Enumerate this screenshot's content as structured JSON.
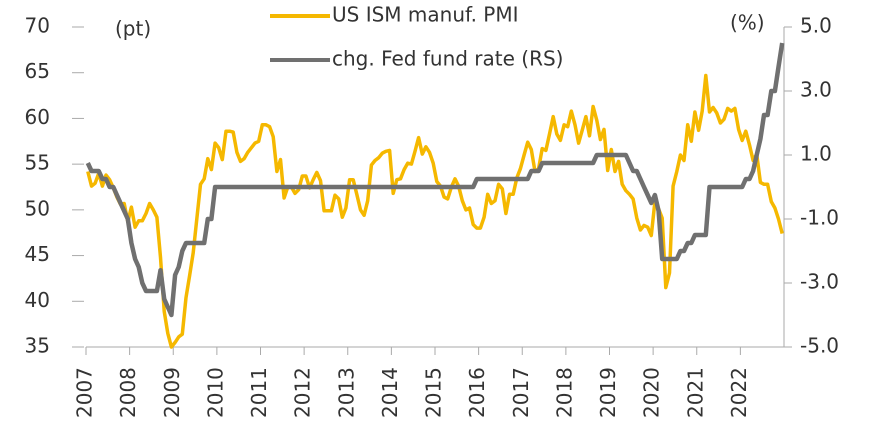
{
  "chart_data": {
    "type": "line",
    "y_unit_label": "(pt)",
    "y2_unit_label": "(%)",
    "xlim": [
      2007,
      2023
    ],
    "xticks": [
      2007,
      2008,
      2009,
      2010,
      2011,
      2012,
      2013,
      2014,
      2015,
      2016,
      2017,
      2018,
      2019,
      2020,
      2021,
      2022
    ],
    "ylim": [
      35,
      70
    ],
    "yticks": [
      35,
      40,
      45,
      50,
      55,
      60,
      65,
      70
    ],
    "y2lim": [
      -5,
      5
    ],
    "y2ticks": [
      {
        "value": -5,
        "label": "-5.0"
      },
      {
        "value": -3,
        "label": "-3.0"
      },
      {
        "value": -1,
        "label": "-1.0"
      },
      {
        "value": 1,
        "label": "1.0"
      },
      {
        "value": 3,
        "label": "3.0"
      },
      {
        "value": 5,
        "label": "5.0"
      }
    ],
    "series": [
      {
        "name": "US ISM manuf. PMI",
        "color": "#f5b800",
        "values": [
          54.2,
          52.6,
          52.9,
          54.0,
          52.6,
          53.8,
          53.3,
          52.4,
          51.4,
          50.6,
          50.7,
          48.7,
          50.3,
          48.1,
          48.8,
          48.8,
          49.6,
          50.7,
          50.0,
          49.2,
          44.8,
          38.9,
          36.5,
          35.0,
          35.5,
          36.1,
          36.4,
          40.4,
          42.8,
          45.3,
          49.1,
          52.8,
          53.4,
          55.6,
          54.4,
          57.3,
          56.8,
          55.5,
          58.6,
          58.6,
          58.5,
          56.3,
          55.3,
          55.6,
          56.3,
          56.8,
          57.3,
          57.5,
          59.3,
          59.3,
          59.1,
          58.0,
          54.2,
          55.5,
          51.3,
          52.5,
          52.5,
          51.8,
          52.2,
          53.7,
          53.7,
          52.4,
          53.3,
          54.1,
          53.2,
          49.9,
          49.9,
          49.9,
          51.6,
          51.2,
          49.2,
          50.2,
          53.3,
          53.3,
          51.7,
          50.0,
          49.4,
          51.0,
          54.9,
          55.4,
          55.7,
          56.2,
          56.4,
          56.5,
          51.8,
          53.3,
          53.4,
          54.4,
          55.1,
          55.0,
          56.4,
          57.9,
          56.1,
          56.9,
          56.3,
          55.1,
          53.1,
          52.6,
          51.4,
          51.2,
          52.5,
          53.4,
          52.6,
          51.0,
          50.0,
          50.2,
          48.4,
          48.0,
          48.0,
          49.2,
          51.7,
          50.7,
          51.0,
          52.8,
          52.3,
          49.6,
          51.7,
          51.7,
          53.5,
          54.5,
          56.0,
          57.4,
          56.6,
          54.2,
          54.5,
          56.7,
          56.5,
          58.3,
          60.2,
          58.3,
          57.6,
          59.3,
          59.1,
          60.8,
          59.3,
          57.3,
          58.7,
          60.2,
          58.1,
          61.3,
          59.8,
          57.7,
          58.8,
          54.3,
          56.6,
          54.2,
          55.3,
          52.8,
          52.1,
          51.7,
          51.2,
          49.1,
          47.8,
          48.3,
          48.1,
          47.2,
          50.9,
          50.1,
          49.1,
          41.5,
          43.1,
          52.6,
          54.2,
          56.0,
          55.4,
          59.3,
          57.5,
          60.7,
          58.7,
          60.8,
          64.7,
          60.7,
          61.2,
          60.6,
          59.5,
          59.9,
          61.1,
          60.8,
          61.1,
          58.8,
          57.6,
          58.6,
          57.1,
          55.4,
          56.1,
          53.0,
          52.8,
          52.8,
          50.9,
          50.2,
          49.0,
          47.4
        ]
      },
      {
        "name": "chg. Fed fund rate (RS)",
        "color": "#707070",
        "axis": "y2",
        "values": [
          0.75,
          0.5,
          0.5,
          0.5,
          0.25,
          0.25,
          0,
          0,
          -0.25,
          -0.5,
          -0.75,
          -1.0,
          -1.75,
          -2.25,
          -2.5,
          -3.0,
          -3.25,
          -3.25,
          -3.25,
          -3.25,
          -2.6,
          -3.5,
          -3.75,
          -4.0,
          -2.75,
          -2.5,
          -2.0,
          -1.75,
          -1.75,
          -1.75,
          -1.75,
          -1.75,
          -1.75,
          -1.0,
          -1.0,
          0,
          0,
          0,
          0,
          0,
          0,
          0,
          0,
          0,
          0,
          0,
          0,
          0,
          0,
          0,
          0,
          0,
          0,
          0,
          0,
          0,
          0,
          0,
          0,
          0,
          0,
          0,
          0,
          0,
          0,
          0,
          0,
          0,
          0,
          0,
          0,
          0,
          0,
          0,
          0,
          0,
          0,
          0,
          0,
          0,
          0,
          0,
          0,
          0,
          0,
          0,
          0,
          0,
          0,
          0,
          0,
          0,
          0,
          0,
          0,
          0,
          0,
          0,
          0,
          0,
          0,
          0,
          0,
          0,
          0,
          0,
          0,
          0.25,
          0.25,
          0.25,
          0.25,
          0.25,
          0.25,
          0.25,
          0.25,
          0.25,
          0.25,
          0.25,
          0.25,
          0.25,
          0.25,
          0.25,
          0.5,
          0.5,
          0.5,
          0.75,
          0.75,
          0.75,
          0.75,
          0.75,
          0.75,
          0.75,
          0.75,
          0.75,
          0.75,
          0.75,
          0.75,
          0.75,
          0.75,
          0.75,
          1.0,
          1.0,
          1.0,
          1.0,
          1.0,
          1.0,
          1.0,
          1.0,
          1.0,
          0.75,
          0.5,
          0.5,
          0.25,
          0,
          -0.25,
          -0.5,
          -0.25,
          -0.75,
          -2.25,
          -2.25,
          -2.25,
          -2.25,
          -2.25,
          -2.0,
          -2.0,
          -1.75,
          -1.75,
          -1.5,
          -1.5,
          -1.5,
          -1.5,
          0,
          0,
          0,
          0,
          0,
          0,
          0,
          0,
          0,
          0,
          0.25,
          0.25,
          0.5,
          1.0,
          1.5,
          2.25,
          2.25,
          3.0,
          3.0,
          3.75,
          4.5
        ]
      }
    ]
  }
}
